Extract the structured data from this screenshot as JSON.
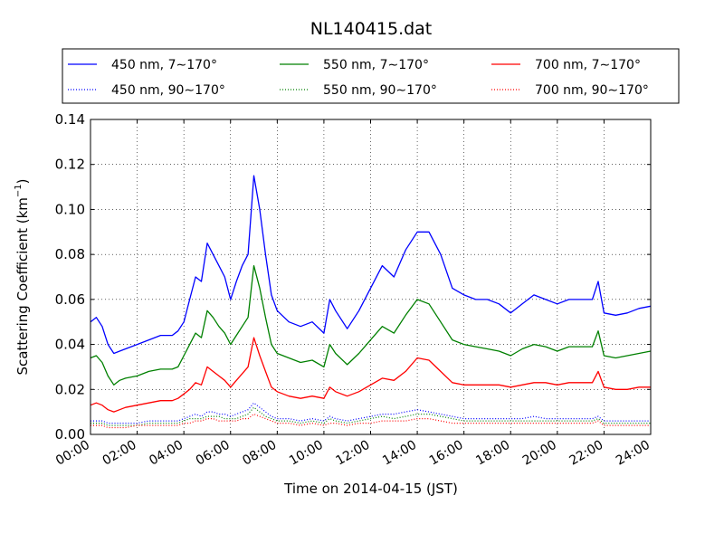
{
  "chart_data": {
    "type": "line",
    "title": "NL140415.dat",
    "xlabel": "Time on 2014-04-15 (JST)",
    "ylabel_main": "Scattering Coefficient (km",
    "ylabel_sup": "−1",
    "ylabel_close": ")",
    "xlim": [
      0,
      24
    ],
    "ylim": [
      0,
      0.14
    ],
    "grid": true,
    "legend_placement": "top, above plot, 3 columns",
    "xticks": [
      0,
      2,
      4,
      6,
      8,
      10,
      12,
      14,
      16,
      18,
      20,
      22,
      24
    ],
    "xtick_labels": [
      "00:00",
      "02:00",
      "04:00",
      "06:00",
      "08:00",
      "10:00",
      "12:00",
      "14:00",
      "16:00",
      "18:00",
      "20:00",
      "22:00",
      "24:00"
    ],
    "yticks": [
      0,
      0.02,
      0.04,
      0.06,
      0.08,
      0.1,
      0.12,
      0.14
    ],
    "ytick_labels": [
      "0.00",
      "0.02",
      "0.04",
      "0.06",
      "0.08",
      "0.10",
      "0.12",
      "0.14"
    ],
    "x": [
      0,
      0.25,
      0.5,
      0.75,
      1.0,
      1.25,
      1.5,
      2.0,
      2.5,
      3.0,
      3.5,
      3.75,
      4.0,
      4.25,
      4.5,
      4.75,
      5.0,
      5.25,
      5.5,
      5.75,
      6.0,
      6.25,
      6.5,
      6.75,
      7.0,
      7.25,
      7.5,
      7.75,
      8.0,
      8.5,
      9.0,
      9.5,
      10.0,
      10.25,
      10.5,
      11.0,
      11.5,
      12.0,
      12.5,
      13.0,
      13.5,
      14.0,
      14.5,
      15.0,
      15.5,
      16.0,
      16.5,
      17.0,
      17.5,
      18.0,
      18.5,
      19.0,
      19.5,
      20.0,
      20.5,
      21.0,
      21.5,
      21.75,
      22.0,
      22.5,
      23.0,
      23.5,
      24.0
    ],
    "series": [
      {
        "name": "450 nm, 7∼170°",
        "color": "#0000ff",
        "style": "solid",
        "values": [
          0.05,
          0.052,
          0.048,
          0.04,
          0.036,
          0.037,
          0.038,
          0.04,
          0.042,
          0.044,
          0.044,
          0.046,
          0.05,
          0.06,
          0.07,
          0.068,
          0.085,
          0.08,
          0.075,
          0.07,
          0.06,
          0.068,
          0.075,
          0.08,
          0.115,
          0.1,
          0.08,
          0.062,
          0.055,
          0.05,
          0.048,
          0.05,
          0.045,
          0.06,
          0.055,
          0.047,
          0.055,
          0.065,
          0.075,
          0.07,
          0.082,
          0.09,
          0.09,
          0.08,
          0.065,
          0.062,
          0.06,
          0.06,
          0.058,
          0.054,
          0.058,
          0.062,
          0.06,
          0.058,
          0.06,
          0.06,
          0.06,
          0.068,
          0.054,
          0.053,
          0.054,
          0.056,
          0.057
        ]
      },
      {
        "name": "550 nm, 7∼170°",
        "color": "#008000",
        "style": "solid",
        "values": [
          0.034,
          0.035,
          0.032,
          0.026,
          0.022,
          0.024,
          0.025,
          0.026,
          0.028,
          0.029,
          0.029,
          0.03,
          0.035,
          0.04,
          0.045,
          0.043,
          0.055,
          0.052,
          0.048,
          0.045,
          0.04,
          0.044,
          0.048,
          0.052,
          0.075,
          0.065,
          0.052,
          0.04,
          0.036,
          0.034,
          0.032,
          0.033,
          0.03,
          0.04,
          0.036,
          0.031,
          0.036,
          0.042,
          0.048,
          0.045,
          0.053,
          0.06,
          0.058,
          0.05,
          0.042,
          0.04,
          0.039,
          0.038,
          0.037,
          0.035,
          0.038,
          0.04,
          0.039,
          0.037,
          0.039,
          0.039,
          0.039,
          0.046,
          0.035,
          0.034,
          0.035,
          0.036,
          0.037
        ]
      },
      {
        "name": "700 nm, 7∼170°",
        "color": "#ff0000",
        "style": "solid",
        "values": [
          0.013,
          0.014,
          0.013,
          0.011,
          0.01,
          0.011,
          0.012,
          0.013,
          0.014,
          0.015,
          0.015,
          0.016,
          0.018,
          0.02,
          0.023,
          0.022,
          0.03,
          0.028,
          0.026,
          0.024,
          0.021,
          0.024,
          0.027,
          0.03,
          0.043,
          0.035,
          0.028,
          0.021,
          0.019,
          0.017,
          0.016,
          0.017,
          0.016,
          0.021,
          0.019,
          0.017,
          0.019,
          0.022,
          0.025,
          0.024,
          0.028,
          0.034,
          0.033,
          0.028,
          0.023,
          0.022,
          0.022,
          0.022,
          0.022,
          0.021,
          0.022,
          0.023,
          0.023,
          0.022,
          0.023,
          0.023,
          0.023,
          0.028,
          0.021,
          0.02,
          0.02,
          0.021,
          0.021
        ]
      },
      {
        "name": "450 nm, 90∼170°",
        "color": "#0000ff",
        "style": "dotted",
        "values": [
          0.006,
          0.006,
          0.006,
          0.005,
          0.005,
          0.005,
          0.005,
          0.005,
          0.006,
          0.006,
          0.006,
          0.006,
          0.007,
          0.008,
          0.009,
          0.008,
          0.01,
          0.01,
          0.009,
          0.009,
          0.008,
          0.009,
          0.01,
          0.011,
          0.014,
          0.012,
          0.01,
          0.008,
          0.007,
          0.007,
          0.006,
          0.007,
          0.006,
          0.008,
          0.007,
          0.006,
          0.007,
          0.008,
          0.009,
          0.009,
          0.01,
          0.011,
          0.01,
          0.009,
          0.008,
          0.007,
          0.007,
          0.007,
          0.007,
          0.007,
          0.007,
          0.008,
          0.007,
          0.007,
          0.007,
          0.007,
          0.007,
          0.008,
          0.006,
          0.006,
          0.006,
          0.006,
          0.006
        ]
      },
      {
        "name": "550 nm, 90∼170°",
        "color": "#008000",
        "style": "dotted",
        "values": [
          0.005,
          0.005,
          0.005,
          0.004,
          0.004,
          0.004,
          0.004,
          0.004,
          0.005,
          0.005,
          0.005,
          0.005,
          0.006,
          0.007,
          0.007,
          0.007,
          0.008,
          0.008,
          0.008,
          0.007,
          0.007,
          0.007,
          0.008,
          0.009,
          0.012,
          0.01,
          0.008,
          0.007,
          0.006,
          0.006,
          0.005,
          0.006,
          0.005,
          0.007,
          0.006,
          0.005,
          0.006,
          0.007,
          0.008,
          0.007,
          0.008,
          0.009,
          0.009,
          0.008,
          0.007,
          0.006,
          0.006,
          0.006,
          0.006,
          0.006,
          0.006,
          0.006,
          0.006,
          0.006,
          0.006,
          0.006,
          0.006,
          0.007,
          0.005,
          0.005,
          0.005,
          0.005,
          0.005
        ]
      },
      {
        "name": "700 nm, 90∼170°",
        "color": "#ff0000",
        "style": "dotted",
        "values": [
          0.004,
          0.004,
          0.004,
          0.003,
          0.003,
          0.003,
          0.003,
          0.004,
          0.004,
          0.004,
          0.004,
          0.004,
          0.005,
          0.005,
          0.006,
          0.006,
          0.007,
          0.007,
          0.006,
          0.006,
          0.006,
          0.006,
          0.007,
          0.007,
          0.009,
          0.008,
          0.007,
          0.006,
          0.005,
          0.005,
          0.004,
          0.005,
          0.004,
          0.005,
          0.005,
          0.004,
          0.005,
          0.005,
          0.006,
          0.006,
          0.006,
          0.007,
          0.007,
          0.006,
          0.005,
          0.005,
          0.005,
          0.005,
          0.005,
          0.005,
          0.005,
          0.005,
          0.005,
          0.005,
          0.005,
          0.005,
          0.005,
          0.006,
          0.004,
          0.004,
          0.004,
          0.004,
          0.004
        ]
      }
    ]
  }
}
